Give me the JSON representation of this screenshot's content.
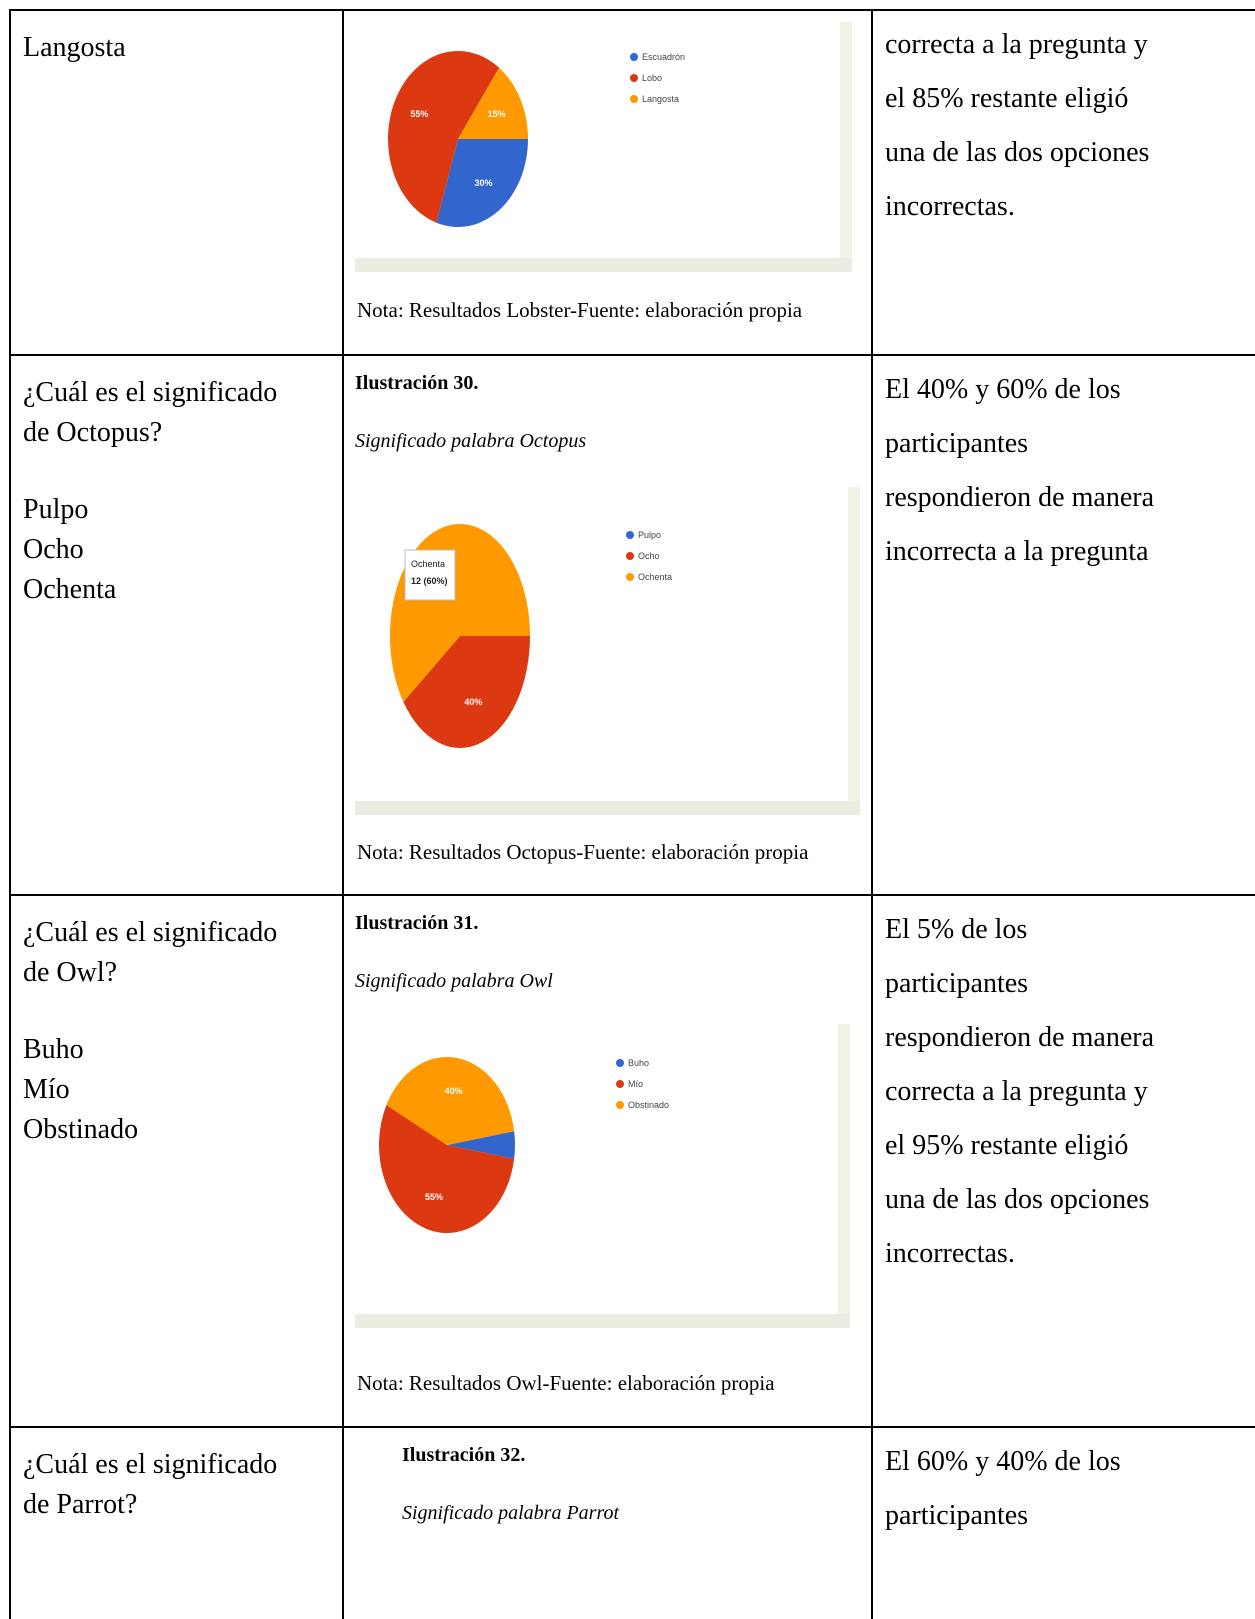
{
  "rows": [
    {
      "question": [
        "Langosta"
      ],
      "figure": {
        "chart": {
          "type": "pie",
          "categories": [
            "Escuadrón",
            "Lobo",
            "Langosta"
          ],
          "values": [
            30,
            55,
            15
          ],
          "value_labels": [
            "30%",
            "55%",
            "15%"
          ],
          "colors": [
            "#3366cc",
            "#dc3912",
            "#ff9900"
          ]
        },
        "note": "Nota: Resultados Lobster-Fuente: elaboración propia"
      },
      "answer": [
        "correcta a la pregunta y",
        "el 85% restante eligió",
        "una de las dos opciones",
        "incorrectas."
      ]
    },
    {
      "question": [
        "¿Cuál es el significado",
        "de Octopus?"
      ],
      "options": [
        "Pulpo",
        "Ocho",
        "Ochenta"
      ],
      "figure": {
        "label": "Ilustración 30.",
        "caption": "Significado palabra Octopus",
        "chart": {
          "type": "pie",
          "categories": [
            "Pulpo",
            "Ocho",
            "Ochenta"
          ],
          "values": [
            0,
            40,
            60
          ],
          "value_labels": [
            null,
            "40%",
            null
          ],
          "colors": [
            "#3366cc",
            "#dc3912",
            "#ff9900"
          ],
          "tooltip": [
            "Ochenta",
            "12 (60%)"
          ]
        },
        "note": "Nota: Resultados Octopus-Fuente: elaboración propia"
      },
      "answer": [
        "El 40% y 60% de los",
        "participantes",
        "respondieron de manera",
        "incorrecta a la pregunta"
      ]
    },
    {
      "question": [
        "¿Cuál es el significado",
        "de Owl?"
      ],
      "options": [
        "Buho",
        "Mío",
        "Obstinado"
      ],
      "figure": {
        "label": "Ilustración 31.",
        "caption": "Significado palabra Owl",
        "chart": {
          "type": "pie",
          "categories": [
            "Buho",
            "Mío",
            "Obstinado"
          ],
          "values": [
            5,
            55,
            40
          ],
          "value_labels": [
            null,
            "55%",
            "40%"
          ],
          "colors": [
            "#3366cc",
            "#dc3912",
            "#ff9900"
          ]
        },
        "note": "Nota: Resultados Owl-Fuente: elaboración propia"
      },
      "answer": [
        "El 5% de los",
        "participantes",
        "respondieron de manera",
        "correcta a la pregunta y",
        "el 95% restante eligió",
        "una de las dos opciones",
        "incorrectas."
      ]
    },
    {
      "question": [
        "¿Cuál es el significado",
        "de Parrot?"
      ],
      "figure": {
        "label": "Ilustración 32.",
        "caption": "Significado palabra Parrot"
      },
      "answer": [
        "El 60% y 40% de los",
        "participantes"
      ]
    }
  ]
}
